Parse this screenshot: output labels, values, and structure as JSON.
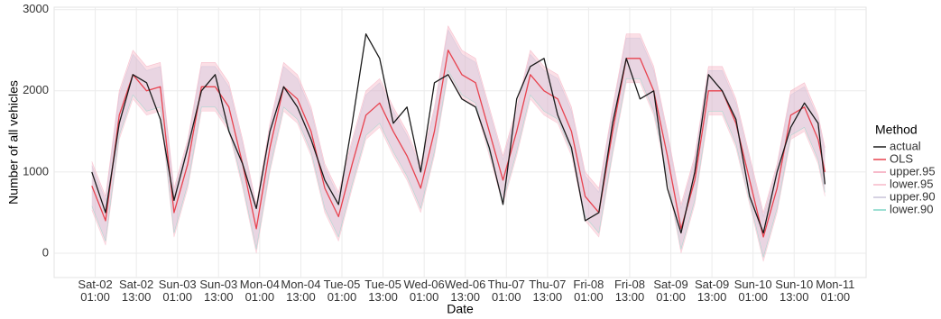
{
  "chart_data": {
    "type": "line",
    "x_label": "Date",
    "y_label": "Number of all vehicles",
    "legend_title": "Method",
    "legend": "right",
    "grid": true,
    "xlim": [
      -11,
      226
    ],
    "ylim": [
      -300,
      3030
    ],
    "yticks": [
      0,
      1000,
      2000,
      3000
    ],
    "xticks": [
      {
        "value": 1,
        "label": "Sat-02\n01:00"
      },
      {
        "value": 13,
        "label": "Sat-02\n13:00"
      },
      {
        "value": 25,
        "label": "Sun-03\n01:00"
      },
      {
        "value": 37,
        "label": "Sun-03\n13:00"
      },
      {
        "value": 49,
        "label": "Mon-04\n01:00"
      },
      {
        "value": 61,
        "label": "Mon-04\n13:00"
      },
      {
        "value": 73,
        "label": "Tue-05\n01:00"
      },
      {
        "value": 85,
        "label": "Tue-05\n13:00"
      },
      {
        "value": 97,
        "label": "Wed-06\n01:00"
      },
      {
        "value": 109,
        "label": "Wed-06\n13:00"
      },
      {
        "value": 121,
        "label": "Thu-07\n01:00"
      },
      {
        "value": 133,
        "label": "Thu-07\n13:00"
      },
      {
        "value": 145,
        "label": "Fri-08\n01:00"
      },
      {
        "value": 157,
        "label": "Fri-08\n13:00"
      },
      {
        "value": 169,
        "label": "Sat-09\n01:00"
      },
      {
        "value": 181,
        "label": "Sat-09\n13:00"
      },
      {
        "value": 193,
        "label": "Sun-10\n01:00"
      },
      {
        "value": 205,
        "label": "Sun-10\n13:00"
      },
      {
        "value": 217,
        "label": "Mon-11\n01:00"
      }
    ],
    "x": [
      0,
      4,
      8,
      12,
      16,
      20,
      24,
      28,
      32,
      36,
      40,
      44,
      48,
      52,
      56,
      60,
      64,
      68,
      72,
      76,
      80,
      84,
      88,
      92,
      96,
      100,
      104,
      108,
      112,
      116,
      120,
      124,
      128,
      132,
      136,
      140,
      144,
      148,
      152,
      156,
      160,
      164,
      168,
      172,
      176,
      180,
      184,
      188,
      192,
      196,
      200,
      204,
      208,
      212,
      214
    ],
    "series": [
      {
        "name": "actual",
        "color": "#1a1a1a",
        "values": [
          1000,
          500,
          1600,
          2200,
          2100,
          1650,
          650,
          1300,
          2000,
          2200,
          1500,
          1100,
          550,
          1500,
          2050,
          1800,
          1400,
          900,
          600,
          1600,
          2700,
          2400,
          1600,
          1800,
          1000,
          2100,
          2200,
          1900,
          1800,
          1300,
          600,
          1900,
          2300,
          2400,
          1700,
          1300,
          400,
          500,
          1600,
          2400,
          1900,
          2000,
          800,
          250,
          1000,
          2200,
          2000,
          1650,
          700,
          250,
          1000,
          1550,
          1850,
          1600,
          850
        ]
      },
      {
        "name": "OLS",
        "color": "#e8434f",
        "values": [
          830,
          400,
          1700,
          2200,
          2000,
          2050,
          500,
          1100,
          2050,
          2050,
          1800,
          1100,
          300,
          1300,
          2050,
          1900,
          1500,
          800,
          450,
          1100,
          1700,
          1850,
          1500,
          1200,
          800,
          1500,
          2500,
          2200,
          2100,
          1500,
          900,
          1500,
          2200,
          2000,
          1900,
          1500,
          700,
          500,
          1500,
          2400,
          2400,
          2000,
          1200,
          300,
          900,
          2000,
          2000,
          1600,
          900,
          200,
          800,
          1700,
          1800,
          1400,
          1000
        ]
      },
      {
        "name": "upper.95",
        "color": "#f4a3b8",
        "values": [
          1130,
          700,
          2000,
          2500,
          2300,
          2350,
          800,
          1400,
          2350,
          2350,
          2100,
          1400,
          600,
          1600,
          2350,
          2200,
          1800,
          1100,
          750,
          1400,
          2000,
          2150,
          1800,
          1500,
          1100,
          1800,
          2800,
          2500,
          2400,
          1800,
          1200,
          1800,
          2500,
          2300,
          2200,
          1800,
          1000,
          800,
          1800,
          2700,
          2700,
          2300,
          1500,
          600,
          1200,
          2300,
          2300,
          1900,
          1200,
          500,
          1100,
          2000,
          2100,
          1700,
          1300
        ]
      },
      {
        "name": "lower.95",
        "color": "#f7b9c8",
        "values": [
          530,
          100,
          1400,
          1900,
          1700,
          1750,
          200,
          800,
          1750,
          1750,
          1500,
          800,
          0,
          1000,
          1750,
          1600,
          1200,
          500,
          150,
          800,
          1400,
          1550,
          1200,
          900,
          500,
          1200,
          2200,
          1900,
          1800,
          1200,
          600,
          1200,
          1900,
          1700,
          1600,
          1200,
          400,
          200,
          1200,
          2100,
          2100,
          1700,
          900,
          0,
          600,
          1700,
          1700,
          1300,
          600,
          -100,
          500,
          1400,
          1500,
          1100,
          700
        ]
      },
      {
        "name": "upper.90",
        "color": "#c9c2d9",
        "values": [
          1080,
          650,
          1950,
          2450,
          2250,
          2300,
          750,
          1350,
          2300,
          2300,
          2050,
          1350,
          550,
          1550,
          2300,
          2150,
          1750,
          1050,
          700,
          1350,
          1950,
          2100,
          1750,
          1450,
          1050,
          1750,
          2750,
          2450,
          2350,
          1750,
          1150,
          1750,
          2450,
          2250,
          2150,
          1750,
          950,
          750,
          1750,
          2650,
          2650,
          2250,
          1450,
          550,
          1150,
          2250,
          2250,
          1850,
          1150,
          450,
          1050,
          1950,
          2050,
          1650,
          1250
        ]
      },
      {
        "name": "lower.90",
        "color": "#7fd6c6",
        "values": [
          580,
          150,
          1450,
          1950,
          1750,
          1800,
          250,
          850,
          1800,
          1800,
          1550,
          850,
          50,
          1050,
          1800,
          1650,
          1250,
          550,
          200,
          850,
          1450,
          1600,
          1250,
          950,
          550,
          1250,
          2250,
          1950,
          1850,
          1250,
          650,
          1250,
          1950,
          1750,
          1650,
          1250,
          450,
          250,
          1250,
          2150,
          2150,
          1750,
          950,
          50,
          650,
          1750,
          1750,
          1350,
          650,
          -50,
          550,
          1450,
          1550,
          1150,
          750
        ]
      }
    ]
  }
}
